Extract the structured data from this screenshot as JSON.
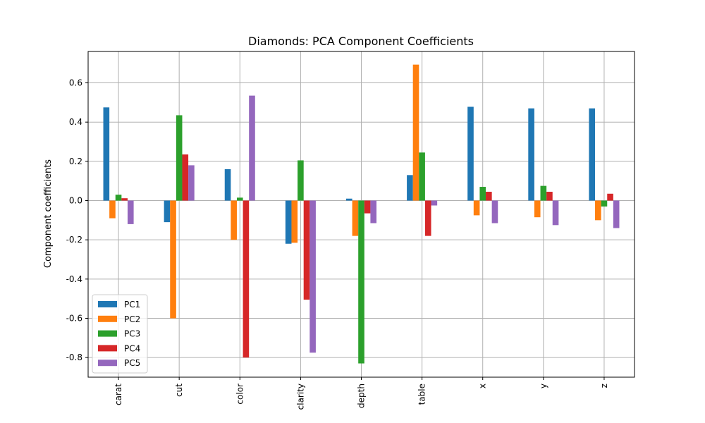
{
  "chart_data": {
    "type": "bar",
    "title": "Diamonds: PCA Component Coefficients",
    "xlabel": "",
    "ylabel": "Component coefficients",
    "categories": [
      "carat",
      "cut",
      "color",
      "clarity",
      "depth",
      "table",
      "x",
      "y",
      "z"
    ],
    "series": [
      {
        "name": "PC1",
        "color": "#1f77b4",
        "values": [
          0.475,
          -0.11,
          0.16,
          -0.22,
          0.01,
          0.13,
          0.478,
          0.47,
          0.47
        ]
      },
      {
        "name": "PC2",
        "color": "#ff7f0e",
        "values": [
          -0.09,
          -0.6,
          -0.2,
          -0.215,
          -0.18,
          0.693,
          -0.075,
          -0.085,
          -0.1
        ]
      },
      {
        "name": "PC3",
        "color": "#2ca02c",
        "values": [
          0.03,
          0.435,
          0.015,
          0.205,
          -0.83,
          0.245,
          0.07,
          0.075,
          -0.03
        ]
      },
      {
        "name": "PC4",
        "color": "#d62728",
        "values": [
          0.012,
          0.235,
          -0.8,
          -0.505,
          -0.065,
          -0.18,
          0.045,
          0.045,
          0.035
        ]
      },
      {
        "name": "PC5",
        "color": "#9467bd",
        "values": [
          -0.12,
          0.18,
          0.535,
          -0.775,
          -0.115,
          -0.025,
          -0.115,
          -0.125,
          -0.14
        ]
      }
    ],
    "yticks": [
      "-0.8",
      "-0.6",
      "-0.4",
      "-0.2",
      "0.0",
      "0.2",
      "0.4",
      "0.6"
    ],
    "ylim": [
      -0.9,
      0.76
    ],
    "grid": true,
    "legend": "lower-left"
  }
}
